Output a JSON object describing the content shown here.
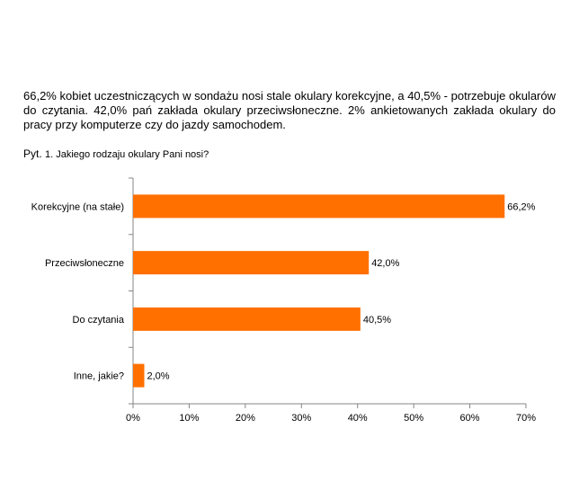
{
  "intro_text": "66,2% kobiet uczestniczących w sondażu nosi stale okulary korekcyjne, a 40,5% - potrzebuje okularów do czytania. 42,0% pań zakłada okulary przeciwsłoneczne. 2% ankietowanych zakłada okulary do pracy przy komputerze czy do jazdy samochodem.",
  "question": {
    "prefix": "Pyt.",
    "text": "1. Jakiego rodzaju okulary Pani nosi?"
  },
  "chart_data": {
    "type": "bar",
    "orientation": "horizontal",
    "categories": [
      "Korekcyjne (na stałe)",
      "Przeciwsłoneczne",
      "Do czytania",
      "Inne, jakie?"
    ],
    "values": [
      66.2,
      42.0,
      40.5,
      2.0
    ],
    "value_labels": [
      "66,2%",
      "42,0%",
      "40,5%",
      "2,0%"
    ],
    "xlim": [
      0,
      70
    ],
    "x_ticks": [
      0,
      10,
      20,
      30,
      40,
      50,
      60,
      70
    ],
    "x_tick_labels": [
      "0%",
      "10%",
      "20%",
      "30%",
      "40%",
      "50%",
      "60%",
      "70%"
    ],
    "bar_color": "#ff7000",
    "grid": false,
    "legend": "none",
    "title": "",
    "xlabel": "",
    "ylabel": ""
  }
}
